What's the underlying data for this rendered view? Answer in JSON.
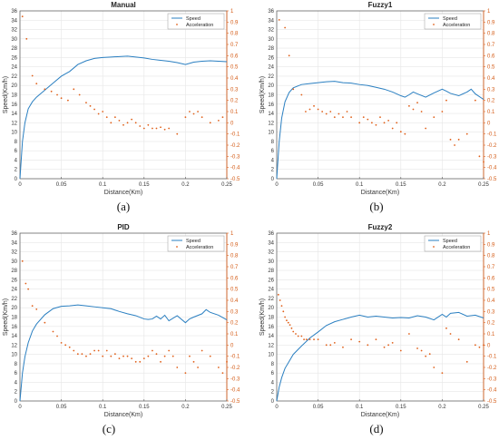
{
  "colors": {
    "speed": "#2a7fc1",
    "acceleration": "#e0601a",
    "grid": "#e6e6e6",
    "axis": "#555555"
  },
  "chart_data": [
    {
      "type": "line",
      "panel": "(a)",
      "title": "Manual",
      "xlabel": "Distance(Km)",
      "ylabel": "Speed(Km/h)",
      "xlim": [
        0,
        0.25
      ],
      "ylim": [
        0,
        36
      ],
      "y2lim": [
        -0.5,
        1
      ],
      "xticks": [
        "0",
        "0.05",
        "0.1",
        "0.15",
        "0.2",
        "0.25"
      ],
      "yticks": [
        "0",
        "2",
        "4",
        "6",
        "8",
        "10",
        "12",
        "14",
        "16",
        "18",
        "20",
        "22",
        "24",
        "26",
        "28",
        "30",
        "32",
        "34",
        "36"
      ],
      "y2ticks": [
        "-0.5",
        "-0.4",
        "-0.3",
        "-0.2",
        "-0.1",
        "0",
        "0.1",
        "0.2",
        "0.3",
        "0.4",
        "0.5",
        "0.6",
        "0.7",
        "0.8",
        "0.9",
        "1"
      ],
      "grid": true,
      "legend_position": "top-right",
      "series": [
        {
          "name": "Speed",
          "axis": "left",
          "style": "line",
          "x": [
            0,
            0.003,
            0.006,
            0.01,
            0.015,
            0.02,
            0.03,
            0.04,
            0.05,
            0.06,
            0.07,
            0.08,
            0.09,
            0.1,
            0.11,
            0.12,
            0.13,
            0.14,
            0.15,
            0.16,
            0.17,
            0.18,
            0.19,
            0.2,
            0.21,
            0.22,
            0.23,
            0.24,
            0.25
          ],
          "y": [
            0,
            8,
            12,
            15,
            16.5,
            17.5,
            19,
            20.5,
            22,
            23,
            24.5,
            25.3,
            25.8,
            26,
            26.1,
            26.2,
            26.3,
            26.1,
            25.9,
            25.6,
            25.4,
            25.2,
            24.9,
            24.5,
            25,
            25.2,
            25.3,
            25.2,
            25.1
          ]
        },
        {
          "name": "Acceleration",
          "axis": "right",
          "style": "points",
          "x": [
            0.003,
            0.008,
            0.015,
            0.02,
            0.03,
            0.038,
            0.045,
            0.05,
            0.058,
            0.065,
            0.072,
            0.08,
            0.085,
            0.09,
            0.095,
            0.1,
            0.105,
            0.11,
            0.115,
            0.12,
            0.125,
            0.13,
            0.135,
            0.14,
            0.145,
            0.15,
            0.155,
            0.16,
            0.165,
            0.17,
            0.175,
            0.18,
            0.19,
            0.2,
            0.205,
            0.21,
            0.215,
            0.22,
            0.23,
            0.24,
            0.245
          ],
          "y": [
            0.95,
            0.75,
            0.42,
            0.35,
            0.3,
            0.28,
            0.25,
            0.22,
            0.2,
            0.3,
            0.25,
            0.18,
            0.15,
            0.12,
            0.08,
            0.1,
            0.05,
            0.0,
            0.05,
            0.02,
            -0.02,
            0.0,
            0.03,
            0.0,
            -0.03,
            -0.05,
            -0.02,
            -0.05,
            -0.05,
            -0.04,
            -0.06,
            -0.05,
            -0.1,
            0.05,
            0.1,
            0.08,
            0.1,
            0.05,
            0.0,
            0.02,
            0.05
          ]
        }
      ]
    },
    {
      "type": "line",
      "panel": "(b)",
      "title": "Fuzzy1",
      "xlabel": "Distance(Km)",
      "ylabel": "Speed(Km/h)",
      "xlim": [
        0,
        0.25
      ],
      "ylim": [
        0,
        36
      ],
      "y2lim": [
        -0.5,
        1
      ],
      "xticks": [
        "0",
        "0.05",
        "0.1",
        "0.15",
        "0.2",
        "0.25"
      ],
      "yticks": [
        "0",
        "2",
        "4",
        "6",
        "8",
        "10",
        "12",
        "14",
        "16",
        "18",
        "20",
        "22",
        "24",
        "26",
        "28",
        "30",
        "32",
        "34",
        "36"
      ],
      "y2ticks": [
        "-0.5",
        "-0.4",
        "-0.3",
        "-0.2",
        "-0.1",
        "0",
        "0.1",
        "0.2",
        "0.3",
        "0.4",
        "0.5",
        "0.6",
        "0.7",
        "0.8",
        "0.9",
        "1"
      ],
      "grid": true,
      "legend_position": "top-right",
      "series": [
        {
          "name": "Speed",
          "axis": "left",
          "style": "line",
          "x": [
            0,
            0.003,
            0.006,
            0.01,
            0.015,
            0.02,
            0.03,
            0.04,
            0.05,
            0.06,
            0.07,
            0.08,
            0.09,
            0.1,
            0.11,
            0.12,
            0.13,
            0.14,
            0.15,
            0.155,
            0.16,
            0.165,
            0.17,
            0.18,
            0.19,
            0.2,
            0.205,
            0.21,
            0.22,
            0.23,
            0.235,
            0.24,
            0.25
          ],
          "y": [
            0,
            8,
            13,
            16.5,
            18.5,
            19.5,
            20.2,
            20.4,
            20.6,
            20.8,
            20.9,
            20.6,
            20.5,
            20.2,
            20,
            19.6,
            19.2,
            18.6,
            17.8,
            17.5,
            18,
            18.6,
            18.2,
            17.5,
            18.4,
            19.2,
            18.8,
            18.3,
            17.8,
            18.6,
            19.2,
            18.2,
            17
          ]
        },
        {
          "name": "Acceleration",
          "axis": "right",
          "style": "points",
          "x": [
            0.003,
            0.01,
            0.015,
            0.02,
            0.03,
            0.035,
            0.04,
            0.045,
            0.05,
            0.055,
            0.06,
            0.065,
            0.07,
            0.075,
            0.08,
            0.085,
            0.09,
            0.1,
            0.105,
            0.11,
            0.115,
            0.12,
            0.125,
            0.13,
            0.135,
            0.14,
            0.145,
            0.15,
            0.155,
            0.16,
            0.165,
            0.17,
            0.175,
            0.18,
            0.19,
            0.2,
            0.205,
            0.21,
            0.215,
            0.22,
            0.23,
            0.24,
            0.245,
            0.25
          ],
          "y": [
            0.92,
            0.85,
            0.6,
            0.3,
            0.25,
            0.1,
            0.12,
            0.15,
            0.12,
            0.1,
            0.08,
            0.1,
            0.05,
            0.08,
            0.05,
            0.1,
            0.05,
            0.0,
            0.05,
            0.03,
            0.0,
            -0.02,
            0.05,
            0.0,
            0.02,
            -0.05,
            0.0,
            -0.08,
            -0.1,
            0.15,
            0.12,
            0.18,
            0.1,
            -0.05,
            0.05,
            0.1,
            0.2,
            -0.15,
            -0.2,
            -0.15,
            -0.1,
            0.2,
            -0.3,
            -0.35
          ]
        }
      ]
    },
    {
      "type": "line",
      "panel": "(c)",
      "title": "PID",
      "xlabel": "Distance(Km)",
      "ylabel": "Speed(Km/h)",
      "xlim": [
        0,
        0.25
      ],
      "ylim": [
        0,
        36
      ],
      "y2lim": [
        -0.5,
        1
      ],
      "xticks": [
        "0",
        "0.05",
        "0.1",
        "0.15",
        "0.2",
        "0.25"
      ],
      "yticks": [
        "0",
        "2",
        "4",
        "6",
        "8",
        "10",
        "12",
        "14",
        "16",
        "18",
        "20",
        "22",
        "24",
        "26",
        "28",
        "30",
        "32",
        "34",
        "36"
      ],
      "y2ticks": [
        "-0.5",
        "-0.4",
        "-0.3",
        "-0.2",
        "-0.1",
        "0",
        "0.1",
        "0.2",
        "0.3",
        "0.4",
        "0.5",
        "0.6",
        "0.7",
        "0.8",
        "0.9",
        "1"
      ],
      "grid": true,
      "legend_position": "top-right",
      "series": [
        {
          "name": "Speed",
          "axis": "left",
          "style": "line",
          "x": [
            0,
            0.003,
            0.006,
            0.01,
            0.015,
            0.02,
            0.03,
            0.04,
            0.05,
            0.06,
            0.07,
            0.08,
            0.09,
            0.1,
            0.11,
            0.12,
            0.13,
            0.14,
            0.15,
            0.155,
            0.16,
            0.165,
            0.17,
            0.175,
            0.18,
            0.19,
            0.2,
            0.205,
            0.21,
            0.22,
            0.225,
            0.23,
            0.24,
            0.25
          ],
          "y": [
            0,
            6,
            9.5,
            12.5,
            15,
            16.5,
            18.5,
            19.8,
            20.3,
            20.4,
            20.6,
            20.4,
            20.2,
            20,
            19.8,
            19.2,
            18.7,
            18.3,
            17.6,
            17.5,
            17.6,
            18.2,
            17.6,
            18.4,
            17.2,
            18.3,
            16.8,
            17.6,
            18,
            18.7,
            19.6,
            19,
            18.4,
            17.4
          ]
        },
        {
          "name": "Acceleration",
          "axis": "right",
          "style": "points",
          "x": [
            0.003,
            0.007,
            0.01,
            0.015,
            0.02,
            0.03,
            0.04,
            0.045,
            0.05,
            0.055,
            0.06,
            0.065,
            0.07,
            0.075,
            0.08,
            0.085,
            0.09,
            0.095,
            0.1,
            0.105,
            0.11,
            0.115,
            0.12,
            0.125,
            0.13,
            0.135,
            0.14,
            0.145,
            0.15,
            0.155,
            0.16,
            0.165,
            0.17,
            0.175,
            0.18,
            0.185,
            0.19,
            0.2,
            0.205,
            0.21,
            0.215,
            0.22,
            0.23,
            0.24,
            0.245,
            0.25
          ],
          "y": [
            0.75,
            0.55,
            0.5,
            0.35,
            0.32,
            0.2,
            0.12,
            0.08,
            0.02,
            0.0,
            -0.02,
            -0.05,
            -0.08,
            -0.08,
            -0.1,
            -0.08,
            -0.05,
            -0.05,
            -0.1,
            -0.05,
            -0.1,
            -0.08,
            -0.12,
            -0.1,
            -0.1,
            -0.12,
            -0.15,
            -0.15,
            -0.12,
            -0.1,
            -0.05,
            -0.08,
            -0.15,
            -0.1,
            -0.05,
            -0.1,
            -0.2,
            -0.25,
            -0.1,
            -0.15,
            -0.2,
            -0.05,
            -0.1,
            -0.2,
            -0.25,
            -0.15
          ]
        }
      ]
    },
    {
      "type": "line",
      "panel": "(d)",
      "title": "Fuzzy2",
      "xlabel": "Distance(Km)",
      "ylabel": "Speed(Km/h)",
      "xlim": [
        0,
        0.25
      ],
      "ylim": [
        0,
        36
      ],
      "y2lim": [
        -0.5,
        1
      ],
      "xticks": [
        "0",
        "0.05",
        "0.1",
        "0.15",
        "0.2",
        "0.25"
      ],
      "yticks": [
        "0",
        "2",
        "4",
        "6",
        "8",
        "10",
        "12",
        "14",
        "16",
        "18",
        "20",
        "22",
        "24",
        "26",
        "28",
        "30",
        "32",
        "34",
        "36"
      ],
      "y2ticks": [
        "-0.5",
        "-0.4",
        "-0.3",
        "-0.2",
        "-0.1",
        "0",
        "0.1",
        "0.2",
        "0.3",
        "0.4",
        "0.5",
        "0.6",
        "0.7",
        "0.8",
        "0.9",
        "1"
      ],
      "grid": true,
      "legend_position": "top-right",
      "series": [
        {
          "name": "Speed",
          "axis": "left",
          "style": "line",
          "x": [
            0,
            0.003,
            0.006,
            0.01,
            0.015,
            0.02,
            0.03,
            0.04,
            0.05,
            0.06,
            0.07,
            0.08,
            0.09,
            0.1,
            0.11,
            0.12,
            0.13,
            0.14,
            0.15,
            0.16,
            0.17,
            0.18,
            0.19,
            0.2,
            0.205,
            0.21,
            0.22,
            0.23,
            0.24,
            0.25
          ],
          "y": [
            0,
            3,
            5,
            7,
            8.5,
            10,
            11.8,
            13.5,
            14.8,
            16.2,
            17,
            17.5,
            18,
            18.4,
            18,
            18.2,
            18,
            17.8,
            17.9,
            17.8,
            18.3,
            18,
            17.4,
            18.6,
            18,
            18.8,
            19,
            18.2,
            18.4,
            17.8
          ]
        },
        {
          "name": "Acceleration",
          "axis": "right",
          "style": "points",
          "x": [
            0.002,
            0.004,
            0.006,
            0.008,
            0.01,
            0.012,
            0.014,
            0.016,
            0.018,
            0.02,
            0.023,
            0.026,
            0.03,
            0.033,
            0.036,
            0.04,
            0.045,
            0.05,
            0.06,
            0.065,
            0.07,
            0.08,
            0.09,
            0.1,
            0.11,
            0.12,
            0.13,
            0.135,
            0.14,
            0.15,
            0.16,
            0.17,
            0.175,
            0.18,
            0.185,
            0.19,
            0.2,
            0.205,
            0.21,
            0.22,
            0.23,
            0.24,
            0.245,
            0.25
          ],
          "y": [
            0.45,
            0.4,
            0.35,
            0.3,
            0.25,
            0.22,
            0.2,
            0.18,
            0.15,
            0.12,
            0.1,
            0.08,
            0.08,
            0.05,
            0.05,
            0.05,
            0.05,
            0.05,
            0.0,
            0.0,
            0.02,
            -0.02,
            0.05,
            0.03,
            0.0,
            0.05,
            -0.02,
            0.0,
            0.02,
            -0.05,
            0.1,
            -0.03,
            -0.05,
            -0.1,
            -0.08,
            -0.2,
            -0.25,
            0.15,
            0.1,
            0.05,
            -0.15,
            0.0,
            -0.02,
            0.0
          ]
        }
      ]
    }
  ],
  "legend": {
    "speed_label": "Speed",
    "acceleration_label": "Acceleration"
  },
  "captions": [
    "(a)",
    "(b)",
    "(c)",
    "(d)"
  ]
}
